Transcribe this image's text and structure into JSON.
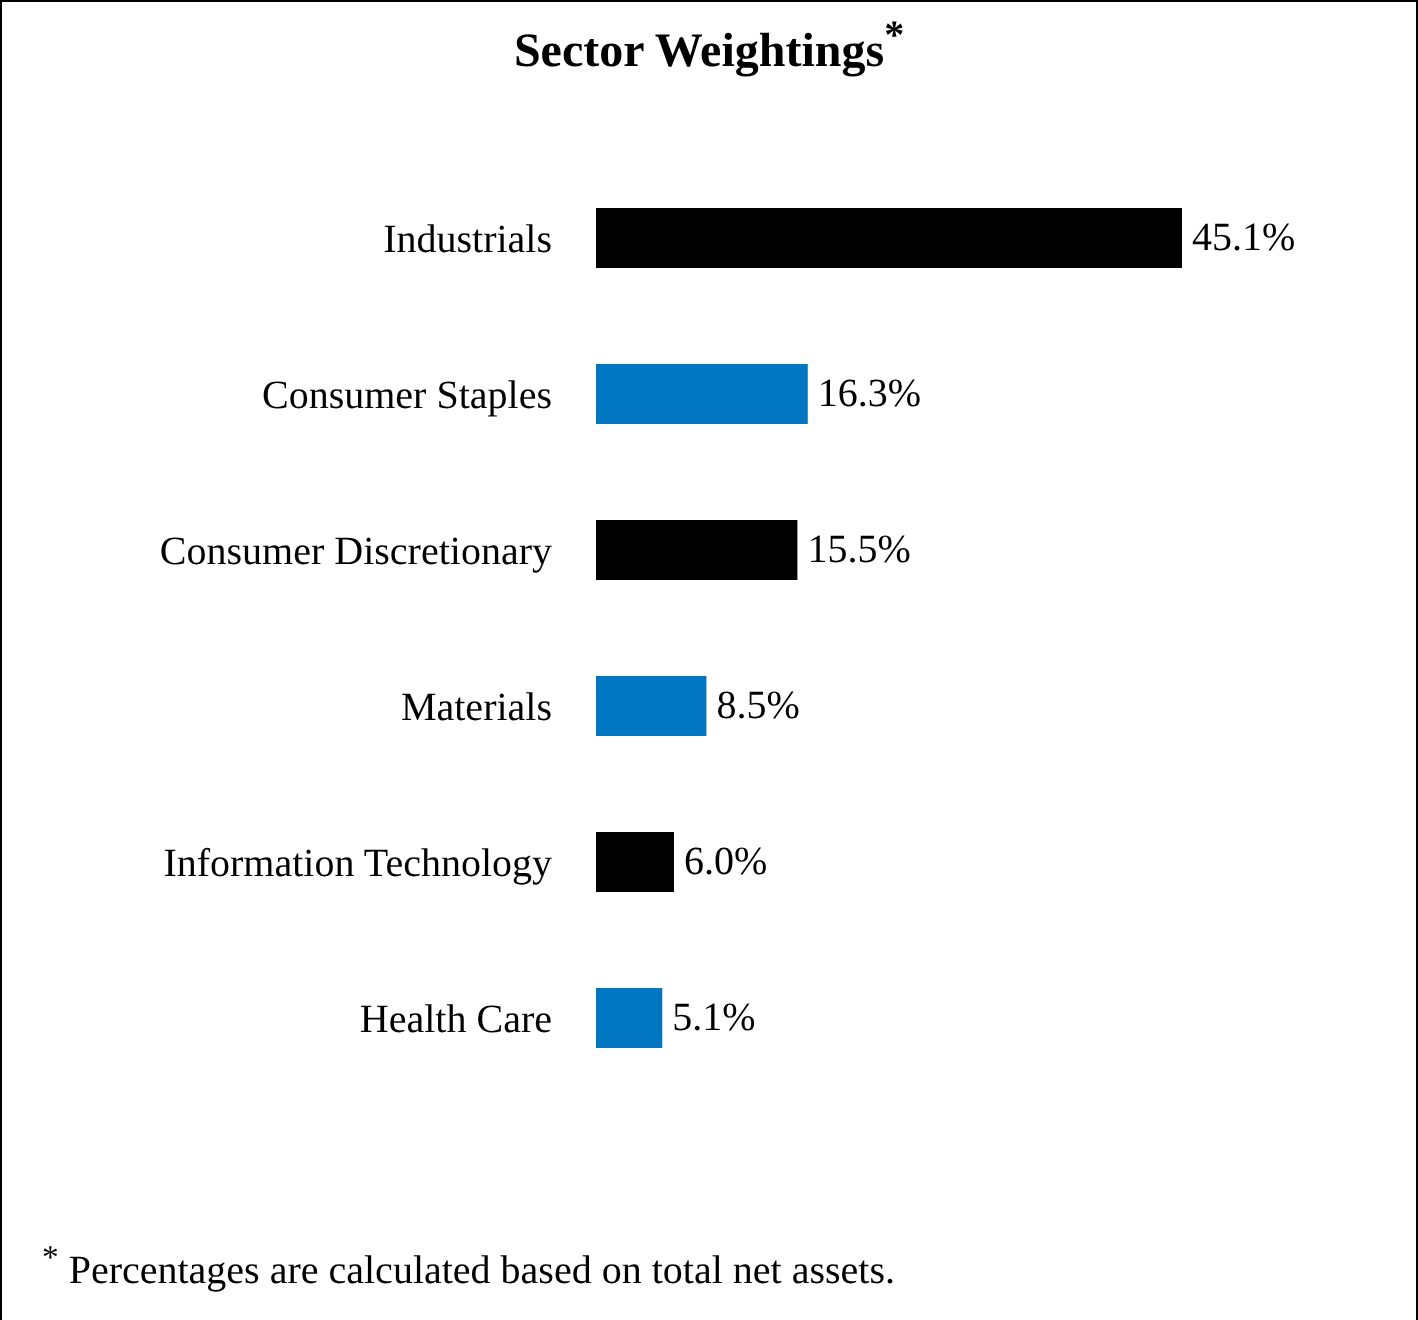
{
  "chart_data": {
    "type": "bar",
    "orientation": "horizontal",
    "title": "Sector Weightings$^{*}$",
    "categories": [
      "Industrials",
      "Consumer Staples",
      "Consumer Discretionary",
      "Materials",
      "Information Technology",
      "Health Care"
    ],
    "values": [
      45.1,
      16.3,
      15.5,
      8.5,
      6.0,
      5.1
    ],
    "colors": [
      "#000000",
      "#0077c0",
      "#000000",
      "#0077c0",
      "#000000",
      "#0077c0"
    ],
    "value_labels": [
      "45.1%",
      "16.3%",
      "15.5%",
      "8.5%",
      "6.0%",
      "5.1%"
    ],
    "annotations": [
      "$^{*}$ Percentages are calculated based on total net assets."
    ]
  }
}
